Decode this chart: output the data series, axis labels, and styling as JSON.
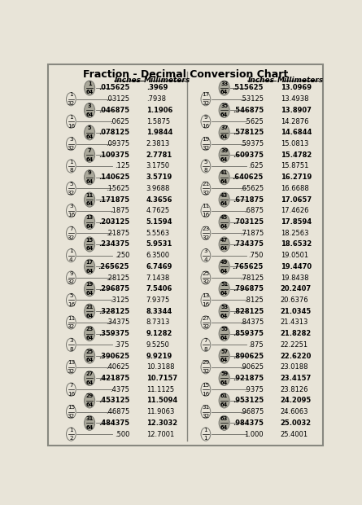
{
  "title": "Fraction - Decimal Conversion Chart",
  "bg_color": "#e8e4d8",
  "left_data": [
    {
      "frac_top": "1",
      "frac_bot": "64",
      "is_64th": true,
      "decimal": ".015625",
      "mm": ".3969"
    },
    {
      "frac_top": "1",
      "frac_bot": "32",
      "is_64th": false,
      "decimal": ".03125",
      "mm": ".7938"
    },
    {
      "frac_top": "3",
      "frac_bot": "64",
      "is_64th": true,
      "decimal": ".046875",
      "mm": "1.1906"
    },
    {
      "frac_top": "1",
      "frac_bot": "16",
      "is_64th": false,
      "decimal": ".0625",
      "mm": "1.5875"
    },
    {
      "frac_top": "5",
      "frac_bot": "64",
      "is_64th": true,
      "decimal": ".078125",
      "mm": "1.9844"
    },
    {
      "frac_top": "3",
      "frac_bot": "32",
      "is_64th": false,
      "decimal": ".09375",
      "mm": "2.3813"
    },
    {
      "frac_top": "7",
      "frac_bot": "64",
      "is_64th": true,
      "decimal": ".109375",
      "mm": "2.7781"
    },
    {
      "frac_top": "1",
      "frac_bot": "8",
      "is_64th": false,
      "decimal": ".125",
      "mm": "3.1750"
    },
    {
      "frac_top": "9",
      "frac_bot": "64",
      "is_64th": true,
      "decimal": ".140625",
      "mm": "3.5719"
    },
    {
      "frac_top": "5",
      "frac_bot": "32",
      "is_64th": false,
      "decimal": ".15625",
      "mm": "3.9688"
    },
    {
      "frac_top": "11",
      "frac_bot": "64",
      "is_64th": true,
      "decimal": ".171875",
      "mm": "4.3656"
    },
    {
      "frac_top": "3",
      "frac_bot": "16",
      "is_64th": false,
      "decimal": ".1875",
      "mm": "4.7625"
    },
    {
      "frac_top": "13",
      "frac_bot": "64",
      "is_64th": true,
      "decimal": ".203125",
      "mm": "5.1594"
    },
    {
      "frac_top": "7",
      "frac_bot": "32",
      "is_64th": false,
      "decimal": ".21875",
      "mm": "5.5563"
    },
    {
      "frac_top": "15",
      "frac_bot": "64",
      "is_64th": true,
      "decimal": ".234375",
      "mm": "5.9531"
    },
    {
      "frac_top": "1",
      "frac_bot": "4",
      "is_64th": false,
      "decimal": ".250",
      "mm": "6.3500"
    },
    {
      "frac_top": "17",
      "frac_bot": "64",
      "is_64th": true,
      "decimal": ".265625",
      "mm": "6.7469"
    },
    {
      "frac_top": "9",
      "frac_bot": "32",
      "is_64th": false,
      "decimal": ".28125",
      "mm": "7.1438"
    },
    {
      "frac_top": "19",
      "frac_bot": "64",
      "is_64th": true,
      "decimal": ".296875",
      "mm": "7.5406"
    },
    {
      "frac_top": "5",
      "frac_bot": "16",
      "is_64th": false,
      "decimal": ".3125",
      "mm": "7.9375"
    },
    {
      "frac_top": "21",
      "frac_bot": "64",
      "is_64th": true,
      "decimal": ".328125",
      "mm": "8.3344"
    },
    {
      "frac_top": "11",
      "frac_bot": "32",
      "is_64th": false,
      "decimal": ".34375",
      "mm": "8.7313"
    },
    {
      "frac_top": "23",
      "frac_bot": "64",
      "is_64th": true,
      "decimal": ".359375",
      "mm": "9.1282"
    },
    {
      "frac_top": "3",
      "frac_bot": "8",
      "is_64th": false,
      "decimal": ".375",
      "mm": "9.5250"
    },
    {
      "frac_top": "25",
      "frac_bot": "64",
      "is_64th": true,
      "decimal": ".390625",
      "mm": "9.9219"
    },
    {
      "frac_top": "13",
      "frac_bot": "32",
      "is_64th": false,
      "decimal": ".40625",
      "mm": "10.3188"
    },
    {
      "frac_top": "27",
      "frac_bot": "64",
      "is_64th": true,
      "decimal": ".421875",
      "mm": "10.7157"
    },
    {
      "frac_top": "7",
      "frac_bot": "16",
      "is_64th": false,
      "decimal": ".4375",
      "mm": "11.1125"
    },
    {
      "frac_top": "29",
      "frac_bot": "64",
      "is_64th": true,
      "decimal": ".453125",
      "mm": "11.5094"
    },
    {
      "frac_top": "15",
      "frac_bot": "32",
      "is_64th": false,
      "decimal": ".46875",
      "mm": "11.9063"
    },
    {
      "frac_top": "31",
      "frac_bot": "64",
      "is_64th": true,
      "decimal": ".484375",
      "mm": "12.3032"
    },
    {
      "frac_top": "1",
      "frac_bot": "2",
      "is_64th": false,
      "decimal": ".500",
      "mm": "12.7001"
    }
  ],
  "right_data": [
    {
      "frac_top": "33",
      "frac_bot": "64",
      "is_64th": true,
      "decimal": ".515625",
      "mm": "13.0969"
    },
    {
      "frac_top": "17",
      "frac_bot": "32",
      "is_64th": false,
      "decimal": ".53125",
      "mm": "13.4938"
    },
    {
      "frac_top": "35",
      "frac_bot": "64",
      "is_64th": true,
      "decimal": ".546875",
      "mm": "13.8907"
    },
    {
      "frac_top": "9",
      "frac_bot": "16",
      "is_64th": false,
      "decimal": ".5625",
      "mm": "14.2876"
    },
    {
      "frac_top": "37",
      "frac_bot": "64",
      "is_64th": true,
      "decimal": ".578125",
      "mm": "14.6844"
    },
    {
      "frac_top": "19",
      "frac_bot": "32",
      "is_64th": false,
      "decimal": ".59375",
      "mm": "15.0813"
    },
    {
      "frac_top": "39",
      "frac_bot": "64",
      "is_64th": true,
      "decimal": ".609375",
      "mm": "15.4782"
    },
    {
      "frac_top": "5",
      "frac_bot": "8",
      "is_64th": false,
      "decimal": ".625",
      "mm": "15.8751"
    },
    {
      "frac_top": "41",
      "frac_bot": "64",
      "is_64th": true,
      "decimal": ".640625",
      "mm": "16.2719"
    },
    {
      "frac_top": "21",
      "frac_bot": "32",
      "is_64th": false,
      "decimal": ".65625",
      "mm": "16.6688"
    },
    {
      "frac_top": "43",
      "frac_bot": "64",
      "is_64th": true,
      "decimal": ".671875",
      "mm": "17.0657"
    },
    {
      "frac_top": "11",
      "frac_bot": "16",
      "is_64th": false,
      "decimal": ".6875",
      "mm": "17.4626"
    },
    {
      "frac_top": "45",
      "frac_bot": "64",
      "is_64th": true,
      "decimal": ".703125",
      "mm": "17.8594"
    },
    {
      "frac_top": "23",
      "frac_bot": "32",
      "is_64th": false,
      "decimal": ".71875",
      "mm": "18.2563"
    },
    {
      "frac_top": "47",
      "frac_bot": "64",
      "is_64th": true,
      "decimal": ".734375",
      "mm": "18.6532"
    },
    {
      "frac_top": "3",
      "frac_bot": "4",
      "is_64th": false,
      "decimal": ".750",
      "mm": "19.0501"
    },
    {
      "frac_top": "49",
      "frac_bot": "64",
      "is_64th": true,
      "decimal": ".765625",
      "mm": "19.4470"
    },
    {
      "frac_top": "25",
      "frac_bot": "32",
      "is_64th": false,
      "decimal": ".78125",
      "mm": "19.8438"
    },
    {
      "frac_top": "51",
      "frac_bot": "64",
      "is_64th": true,
      "decimal": ".796875",
      "mm": "20.2407"
    },
    {
      "frac_top": "13",
      "frac_bot": "16",
      "is_64th": false,
      "decimal": ".8125",
      "mm": "20.6376"
    },
    {
      "frac_top": "53",
      "frac_bot": "64",
      "is_64th": true,
      "decimal": ".828125",
      "mm": "21.0345"
    },
    {
      "frac_top": "27",
      "frac_bot": "32",
      "is_64th": false,
      "decimal": ".84375",
      "mm": "21.4313"
    },
    {
      "frac_top": "55",
      "frac_bot": "64",
      "is_64th": true,
      "decimal": ".859375",
      "mm": "21.8282"
    },
    {
      "frac_top": "7",
      "frac_bot": "8",
      "is_64th": false,
      "decimal": ".875",
      "mm": "22.2251"
    },
    {
      "frac_top": "57",
      "frac_bot": "64",
      "is_64th": true,
      "decimal": ".890625",
      "mm": "22.6220"
    },
    {
      "frac_top": "29",
      "frac_bot": "32",
      "is_64th": false,
      "decimal": ".90625",
      "mm": "23.0188"
    },
    {
      "frac_top": "59",
      "frac_bot": "64",
      "is_64th": true,
      "decimal": ".921875",
      "mm": "23.4157"
    },
    {
      "frac_top": "15",
      "frac_bot": "16",
      "is_64th": false,
      "decimal": ".9375",
      "mm": "23.8126"
    },
    {
      "frac_top": "61",
      "frac_bot": "64",
      "is_64th": true,
      "decimal": ".953125",
      "mm": "24.2095"
    },
    {
      "frac_top": "31",
      "frac_bot": "32",
      "is_64th": false,
      "decimal": ".96875",
      "mm": "24.6063"
    },
    {
      "frac_top": "63",
      "frac_bot": "64",
      "is_64th": true,
      "decimal": ".984375",
      "mm": "25.0032"
    },
    {
      "frac_top": "1",
      "frac_bot": "1",
      "is_64th": false,
      "decimal": "1.000",
      "mm": "25.4001"
    }
  ]
}
